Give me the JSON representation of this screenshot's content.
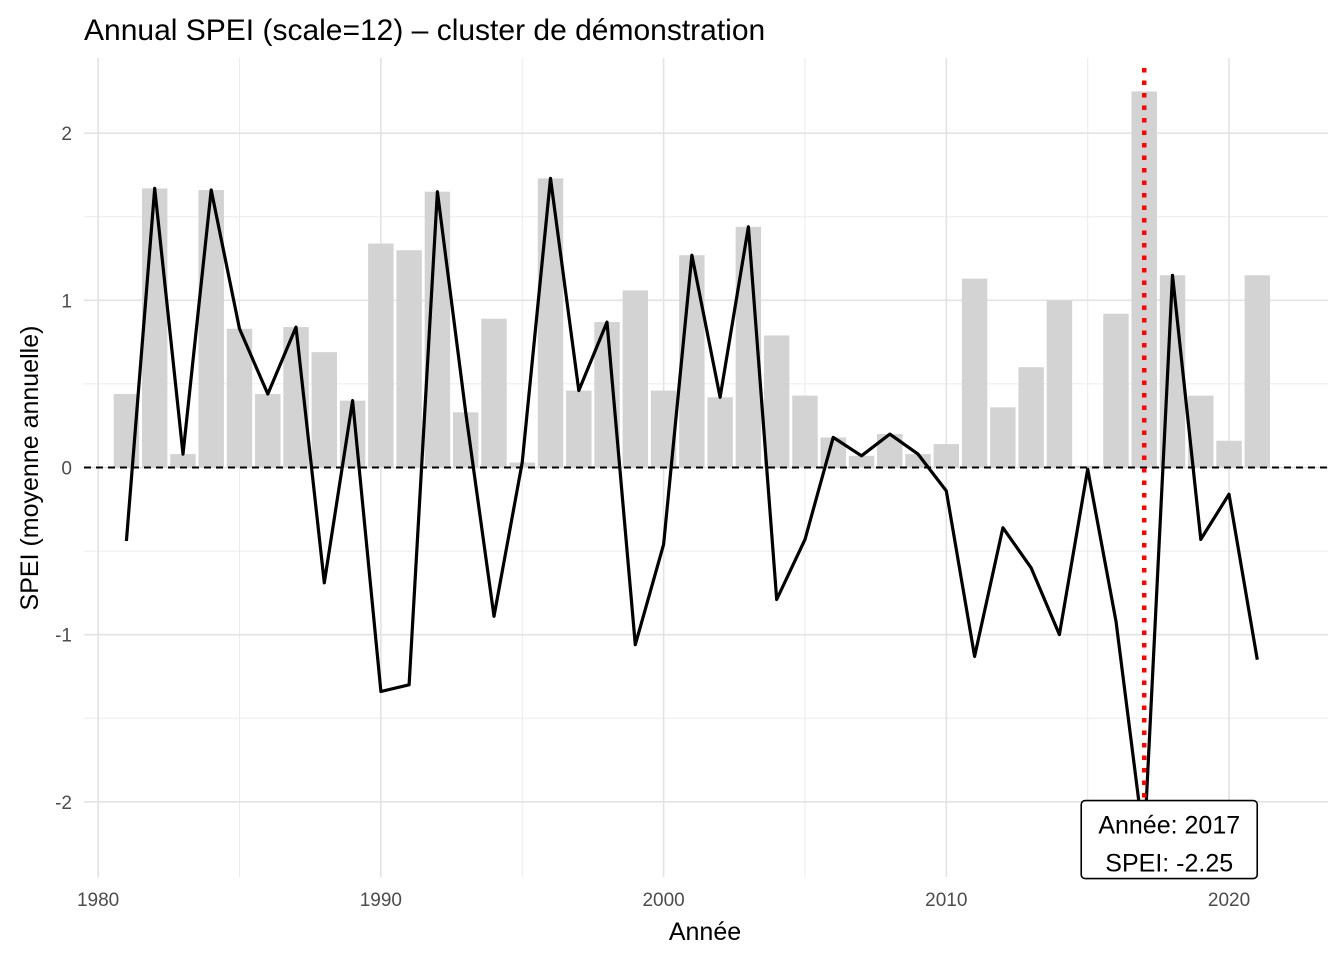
{
  "chart_data": {
    "type": "bar",
    "title": "Annual SPEI (scale=12) – cluster de démonstration",
    "xlabel": "Année",
    "ylabel": "SPEI (moyenne annuelle)",
    "xlim": [
      1979.5,
      2023.5
    ],
    "ylim": [
      -2.45,
      2.45
    ],
    "x_ticks": [
      1980,
      1990,
      2000,
      2010,
      2020
    ],
    "y_ticks": [
      -2,
      -1,
      0,
      1,
      2
    ],
    "grid": true,
    "years": [
      1981,
      1982,
      1983,
      1984,
      1985,
      1986,
      1987,
      1988,
      1989,
      1990,
      1991,
      1992,
      1993,
      1994,
      1995,
      1996,
      1997,
      1998,
      1999,
      2000,
      2001,
      2002,
      2003,
      2004,
      2005,
      2006,
      2007,
      2008,
      2009,
      2010,
      2011,
      2012,
      2013,
      2014,
      2015,
      2016,
      2017,
      2018,
      2019,
      2020,
      2021
    ],
    "series": [
      {
        "kind": "bar",
        "color": "#d3d3d3",
        "values": [
          0.44,
          1.67,
          0.08,
          1.66,
          0.83,
          0.44,
          0.84,
          0.69,
          0.4,
          1.34,
          1.3,
          1.65,
          0.33,
          0.89,
          0.03,
          1.73,
          0.46,
          0.87,
          1.06,
          0.46,
          1.27,
          0.42,
          1.44,
          0.79,
          0.43,
          0.18,
          0.07,
          0.2,
          0.08,
          0.14,
          1.13,
          0.36,
          0.6,
          1.0,
          0.01,
          0.92,
          2.25,
          1.15,
          0.43,
          0.16,
          1.15
        ]
      },
      {
        "kind": "line",
        "color": "#000000",
        "values": [
          -0.44,
          1.67,
          0.08,
          1.66,
          0.83,
          0.44,
          0.84,
          -0.69,
          0.4,
          -1.34,
          -1.3,
          1.65,
          0.33,
          -0.89,
          0.03,
          1.73,
          0.46,
          0.87,
          -1.06,
          -0.46,
          1.27,
          0.42,
          1.44,
          -0.79,
          -0.43,
          0.18,
          0.07,
          0.2,
          0.08,
          -0.14,
          -1.13,
          -0.36,
          -0.6,
          -1.0,
          -0.01,
          -0.92,
          -2.25,
          1.15,
          -0.43,
          -0.16,
          -1.15
        ]
      }
    ],
    "reference_line": {
      "y": 0,
      "style": "dashed",
      "color": "#000000"
    },
    "highlight": {
      "year": 2017,
      "value": -2.25,
      "color": "#ff0000",
      "style": "dotted"
    },
    "annotation": {
      "line1": "Année: 2017",
      "line2": "SPEI: -2.25"
    }
  }
}
